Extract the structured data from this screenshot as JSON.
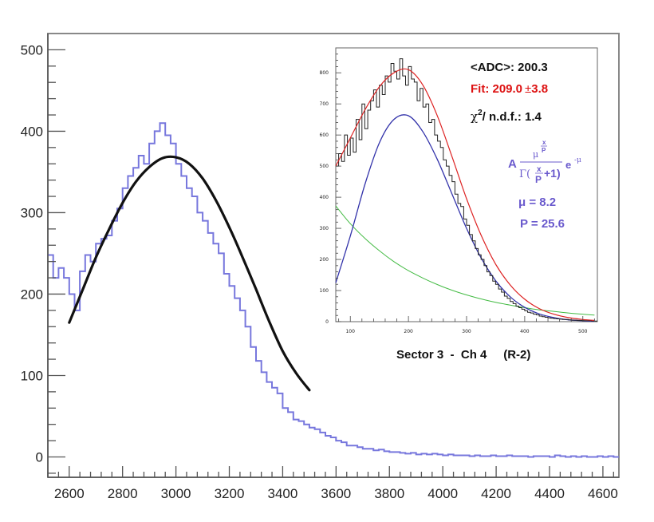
{
  "chart_data": [
    {
      "type": "line",
      "role": "main-histogram",
      "title": "",
      "xlabel": "",
      "ylabel": "",
      "xlim": [
        2520,
        4660
      ],
      "ylim": [
        -25,
        520
      ],
      "x_ticks": [
        2600,
        2800,
        3000,
        3200,
        3400,
        3600,
        3800,
        4000,
        4200,
        4400,
        4600
      ],
      "y_ticks": [
        0,
        100,
        200,
        300,
        400,
        500
      ],
      "grid": false,
      "colors": {
        "histogram": "#7777dd",
        "fit": "#111111",
        "axis": "#555555"
      },
      "series": [
        {
          "kind": "step",
          "bin_width": 20,
          "x": [
            2520,
            2540,
            2560,
            2580,
            2600,
            2620,
            2640,
            2660,
            2680,
            2700,
            2720,
            2740,
            2760,
            2780,
            2800,
            2820,
            2840,
            2860,
            2880,
            2900,
            2920,
            2940,
            2960,
            2980,
            3000,
            3020,
            3040,
            3060,
            3080,
            3100,
            3120,
            3140,
            3160,
            3180,
            3200,
            3220,
            3240,
            3260,
            3280,
            3300,
            3320,
            3340,
            3360,
            3380,
            3400,
            3420,
            3440,
            3460,
            3480,
            3500,
            3520,
            3540,
            3560,
            3580,
            3600,
            3620,
            3640,
            3660,
            3680,
            3700,
            3720,
            3740,
            3760,
            3780,
            3800,
            3820,
            3840,
            3860,
            3880,
            3900,
            3920,
            3940,
            3960,
            3980,
            4000,
            4020,
            4040,
            4060,
            4080,
            4100,
            4120,
            4140,
            4160,
            4180,
            4200,
            4220,
            4240,
            4260,
            4280,
            4300,
            4320,
            4340,
            4360,
            4380,
            4400,
            4420,
            4440,
            4460,
            4480,
            4500,
            4520,
            4540,
            4560,
            4580,
            4600,
            4620,
            4640
          ],
          "y": [
            248,
            220,
            232,
            220,
            200,
            180,
            228,
            248,
            240,
            262,
            268,
            272,
            290,
            305,
            330,
            345,
            355,
            370,
            360,
            385,
            400,
            410,
            395,
            385,
            360,
            345,
            330,
            320,
            300,
            290,
            275,
            262,
            250,
            225,
            210,
            195,
            180,
            160,
            135,
            118,
            104,
            92,
            85,
            78,
            60,
            55,
            46,
            44,
            40,
            36,
            34,
            30,
            26,
            24,
            20,
            18,
            14,
            14,
            12,
            10,
            10,
            8,
            9,
            7,
            6,
            6,
            5,
            4,
            5,
            3,
            4,
            3,
            4,
            3,
            2,
            3,
            2,
            2,
            2,
            1,
            2,
            1,
            1,
            2,
            1,
            1,
            2,
            1,
            1,
            1,
            0,
            1,
            1,
            1,
            0,
            2,
            1,
            0,
            1,
            0,
            1,
            0,
            0,
            1,
            0,
            1,
            0
          ]
        },
        {
          "kind": "fit-curve",
          "x": [
            2600,
            2650,
            2700,
            2750,
            2800,
            2850,
            2900,
            2950,
            3000,
            3050,
            3100,
            3150,
            3200,
            3250,
            3300,
            3350,
            3400,
            3450,
            3500
          ],
          "y": [
            165,
            205,
            245,
            280,
            312,
            338,
            356,
            367,
            368,
            360,
            342,
            315,
            282,
            245,
            206,
            166,
            130,
            103,
            82
          ]
        }
      ]
    },
    {
      "type": "line",
      "role": "inset-fit",
      "title": "",
      "xlabel": "",
      "ylabel": "",
      "xlim": [
        75,
        525
      ],
      "ylim": [
        0,
        880
      ],
      "x_ticks": [
        100,
        200,
        300,
        400,
        500
      ],
      "y_ticks": [
        0,
        100,
        200,
        300,
        400,
        500,
        600,
        700,
        800
      ],
      "grid": false,
      "colors": {
        "data": "#222222",
        "total-fit": "#dd2222",
        "signal": "#3333aa",
        "background": "#44bb44"
      },
      "series": [
        {
          "kind": "step",
          "bin_width": 5,
          "x": [
            75,
            80,
            85,
            90,
            95,
            100,
            105,
            110,
            115,
            120,
            125,
            130,
            135,
            140,
            145,
            150,
            155,
            160,
            165,
            170,
            175,
            180,
            185,
            190,
            195,
            200,
            205,
            210,
            215,
            220,
            225,
            230,
            235,
            240,
            245,
            250,
            255,
            260,
            265,
            270,
            275,
            280,
            285,
            290,
            295,
            300,
            305,
            310,
            315,
            320,
            325,
            330,
            335,
            340,
            345,
            350,
            355,
            360,
            365,
            370,
            375,
            380,
            385,
            390,
            395,
            400,
            405,
            410,
            415,
            420,
            425,
            430,
            435,
            440,
            445,
            450,
            455,
            460,
            465,
            470,
            475,
            480,
            485,
            490,
            495,
            500,
            505,
            510,
            515,
            520
          ],
          "y": [
            500,
            540,
            515,
            600,
            535,
            590,
            545,
            650,
            585,
            700,
            620,
            680,
            710,
            745,
            690,
            760,
            730,
            790,
            770,
            830,
            805,
            780,
            845,
            790,
            760,
            820,
            780,
            770,
            710,
            750,
            690,
            700,
            640,
            650,
            600,
            580,
            560,
            520,
            500,
            470,
            450,
            410,
            380,
            370,
            330,
            310,
            280,
            260,
            235,
            215,
            200,
            180,
            160,
            148,
            130,
            120,
            105,
            95,
            82,
            75,
            65,
            58,
            50,
            45,
            40,
            35,
            30,
            28,
            24,
            22,
            18,
            16,
            14,
            12,
            11,
            10,
            9,
            8,
            7,
            7,
            6,
            5,
            5,
            4,
            4,
            3,
            3,
            3,
            2,
            2
          ]
        },
        {
          "name": "",
          "kind": "total-fit",
          "x": [
            75,
            100,
            125,
            150,
            175,
            200,
            225,
            250,
            275,
            300,
            325,
            350,
            375,
            400,
            425,
            450,
            475,
            500,
            520
          ],
          "y": [
            500,
            590,
            680,
            755,
            800,
            810,
            760,
            660,
            530,
            395,
            278,
            185,
            118,
            72,
            42,
            24,
            13,
            7,
            4
          ]
        },
        {
          "name": "",
          "kind": "signal",
          "x": [
            75,
            100,
            125,
            150,
            175,
            200,
            225,
            250,
            275,
            300,
            325,
            350,
            375,
            400,
            425,
            450,
            475,
            500,
            520
          ],
          "y": [
            125,
            275,
            440,
            575,
            650,
            662,
            610,
            520,
            410,
            300,
            205,
            132,
            80,
            46,
            25,
            13,
            6,
            3,
            1
          ]
        },
        {
          "name": "",
          "kind": "background",
          "x": [
            75,
            100,
            125,
            150,
            175,
            200,
            225,
            250,
            275,
            300,
            325,
            350,
            375,
            400,
            425,
            450,
            475,
            500,
            520
          ],
          "y": [
            372,
            315,
            268,
            228,
            193,
            164,
            140,
            119,
            101,
            86,
            73,
            62,
            53,
            45,
            38,
            33,
            28,
            24,
            21
          ]
        }
      ]
    }
  ],
  "inset": {
    "adc_label": "<ADC>: 200.3",
    "fit_text": "Fit: 209.0",
    "fit_pm": "±",
    "fit_err": "3.8",
    "chi_prefix": "χ",
    "chi_sup": "2",
    "chi_suffix": "/ n.d.f.:  1.4",
    "formula": {
      "A": "A",
      "mu": "μ",
      "x": "x",
      "P": "P",
      "Gamma": "Γ(",
      "plus": "+1)",
      "e": "e",
      "exp": "-μ"
    },
    "mu_text": "μ  =  8.2",
    "p_text": "P = 25.6",
    "caption": "Sector 3  -  Ch 4     (R-2)"
  },
  "colors": {
    "annotation_black": "#111111",
    "annotation_red": "#dd1111",
    "annotation_purple": "#6a5acd",
    "inset_border": "#666666"
  }
}
